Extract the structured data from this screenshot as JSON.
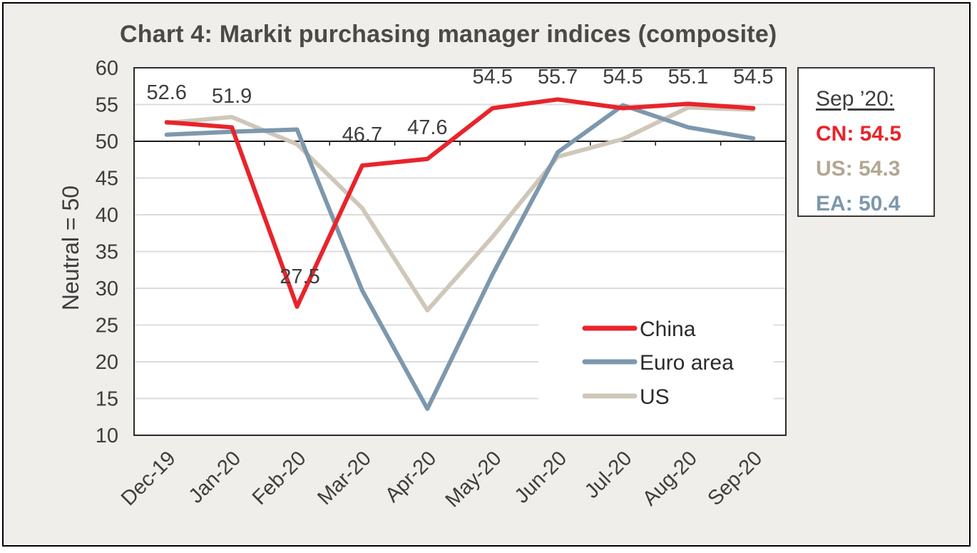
{
  "title": "Chart 4: Markit purchasing manager indices (composite)",
  "summary_box": {
    "heading": "Sep ’20:",
    "items": [
      {
        "text": "CN: 54.5",
        "color": "#e8242b"
      },
      {
        "text": "US: 54.3",
        "color": "#b3a792"
      },
      {
        "text": "EA: 50.4",
        "color": "#7d98ad"
      }
    ]
  },
  "chart_data": {
    "type": "line",
    "title": "Chart 4: Markit purchasing manager indices (composite)",
    "xlabel": "",
    "ylabel": "Neutral = 50",
    "ylim": [
      10,
      60
    ],
    "yticks": [
      10,
      15,
      20,
      25,
      30,
      35,
      40,
      45,
      50,
      55,
      60
    ],
    "reference_line": 50,
    "grid": true,
    "legend_position": "bottom-right",
    "categories": [
      "Dec-19",
      "Jan-20",
      "Feb-20",
      "Mar-20",
      "Apr-20",
      "May-20",
      "Jun-20",
      "Jul-20",
      "Aug-20",
      "Sep-20"
    ],
    "series": [
      {
        "name": "China",
        "color": "#e8242b",
        "values": [
          52.6,
          51.9,
          27.5,
          46.7,
          47.6,
          54.5,
          55.7,
          54.5,
          55.1,
          54.5
        ],
        "labels": [
          "52.6",
          "51.9",
          "27.5",
          "46.7",
          "47.6",
          "54.5",
          "55.7",
          "54.5",
          "55.1",
          "54.5"
        ]
      },
      {
        "name": "Euro area",
        "color": "#7d98ad",
        "values": [
          50.9,
          51.3,
          51.6,
          29.7,
          13.6,
          31.9,
          48.5,
          54.9,
          51.9,
          50.4
        ]
      },
      {
        "name": "US",
        "color": "#cfc7b9",
        "values": [
          52.5,
          53.3,
          49.6,
          40.9,
          27.0,
          37.0,
          47.9,
          50.3,
          54.6,
          54.3
        ]
      }
    ]
  }
}
